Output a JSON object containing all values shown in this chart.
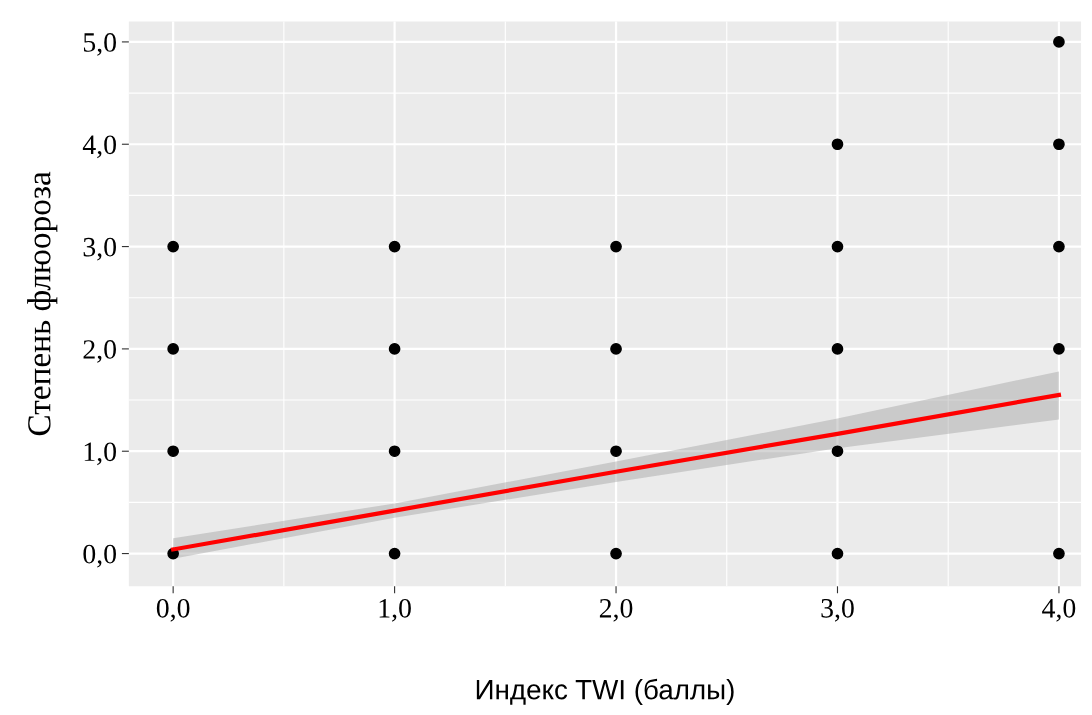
{
  "chart_data": {
    "type": "scatter",
    "xlabel": "Индекс TWI (баллы)",
    "ylabel": "Степень флюороза",
    "series": [
      {
        "color": "#000000",
        "marker": "circle",
        "x": [
          0,
          0,
          0,
          0,
          1,
          1,
          1,
          1,
          2,
          2,
          2,
          2,
          3,
          3,
          3,
          3,
          3,
          4,
          4,
          4,
          4,
          4
        ],
        "values": [
          0,
          1,
          2,
          3,
          0,
          1,
          2,
          3,
          0,
          1,
          2,
          3,
          0,
          1,
          2,
          3,
          4,
          0,
          2,
          3,
          4,
          5
        ]
      },
      {
        "type": "line",
        "color": "#ff0000",
        "marker": "none",
        "x": [
          0,
          1,
          2,
          3,
          4
        ],
        "values": [
          0.04,
          0.42,
          0.8,
          1.17,
          1.55
        ],
        "lower": [
          -0.05,
          0.35,
          0.7,
          1.03,
          1.31
        ],
        "upper": [
          0.15,
          0.49,
          0.9,
          1.32,
          1.78
        ]
      }
    ],
    "grid": true,
    "xlim": [
      -0.2,
      4.1
    ],
    "ylim": [
      -0.32,
      5.2
    ],
    "xticks": [
      {
        "value": 0,
        "label": "0,0"
      },
      {
        "value": 1,
        "label": "1,0"
      },
      {
        "value": 2,
        "label": "2,0"
      },
      {
        "value": 3,
        "label": "3,0"
      },
      {
        "value": 4,
        "label": "4,0"
      }
    ],
    "yticks": [
      {
        "value": 0,
        "label": "0,0"
      },
      {
        "value": 1,
        "label": "1,0"
      },
      {
        "value": 2,
        "label": "2,0"
      },
      {
        "value": 3,
        "label": "3,0"
      },
      {
        "value": 4,
        "label": "4,0"
      },
      {
        "value": 5,
        "label": "5,0"
      }
    ]
  }
}
